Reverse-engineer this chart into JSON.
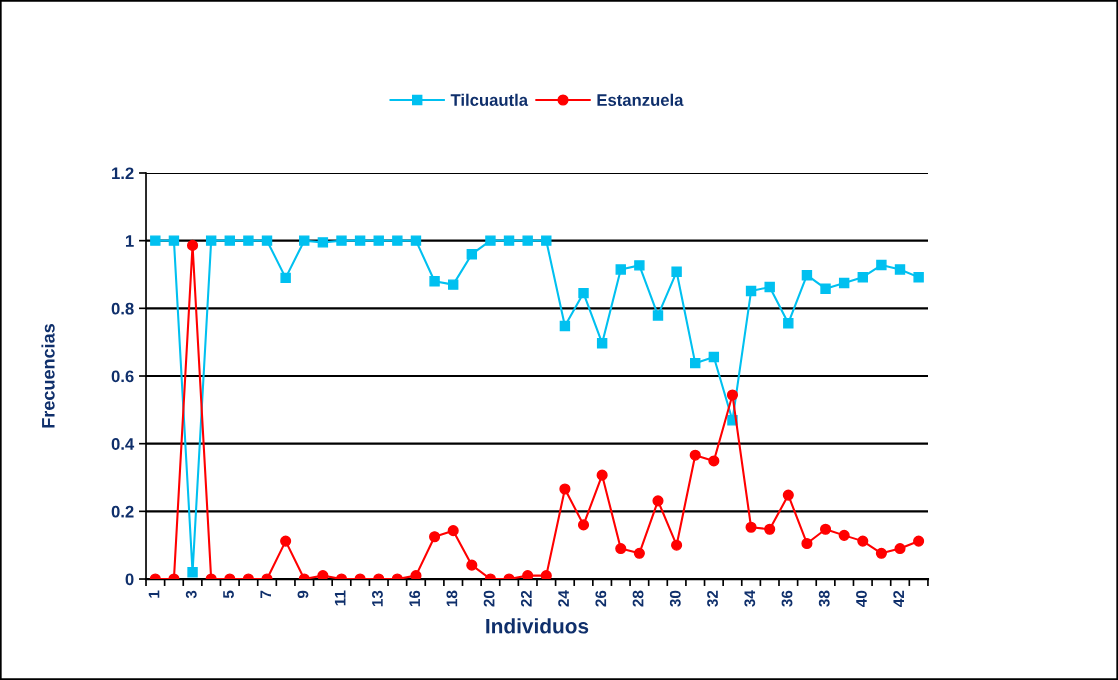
{
  "chart_data": {
    "type": "line",
    "xlabel": "Individuos",
    "ylabel": "Frecuencias",
    "categories": [
      "1",
      null,
      "3",
      null,
      "5",
      null,
      "7",
      null,
      "9",
      null,
      "11",
      null,
      "13",
      null,
      "16",
      null,
      "18",
      null,
      "20",
      null,
      "22",
      null,
      "24",
      null,
      "26",
      null,
      "28",
      null,
      "30",
      null,
      "32",
      null,
      "34",
      null,
      "36",
      null,
      "38",
      null,
      "40",
      null,
      "42",
      null
    ],
    "series": [
      {
        "name": "Tilcuautla",
        "color": "#00c0f0",
        "marker": "square",
        "values": [
          1,
          1,
          0.02,
          1,
          1,
          1,
          1,
          0.89,
          1,
          0.995,
          1,
          1,
          1,
          1,
          1,
          0.88,
          0.87,
          0.96,
          1,
          1,
          1,
          1,
          0.748,
          0.845,
          0.697,
          0.915,
          0.927,
          0.779,
          0.908,
          0.638,
          0.656,
          0.469,
          0.851,
          0.863,
          0.756,
          0.898,
          0.858,
          0.875,
          0.892,
          0.928,
          0.915,
          0.892
        ]
      },
      {
        "name": "Estanzuela",
        "color": "#ff0000",
        "marker": "circle",
        "values": [
          0,
          0,
          0.986,
          0,
          0,
          0,
          0,
          0.112,
          0,
          0.01,
          0,
          0,
          0,
          0,
          0.01,
          0.125,
          0.143,
          0.041,
          0,
          0,
          0.01,
          0.01,
          0.266,
          0.16,
          0.307,
          0.09,
          0.076,
          0.231,
          0.1,
          0.366,
          0.349,
          0.544,
          0.153,
          0.147,
          0.248,
          0.105,
          0.147,
          0.129,
          0.112,
          0.076,
          0.09,
          0.112
        ]
      }
    ],
    "ylim": [
      0,
      1.2
    ],
    "yticks": [
      0,
      0.2,
      0.4,
      0.6,
      0.8,
      1,
      1.2
    ],
    "grid": "y",
    "legend": "top",
    "line_style": "solid"
  }
}
